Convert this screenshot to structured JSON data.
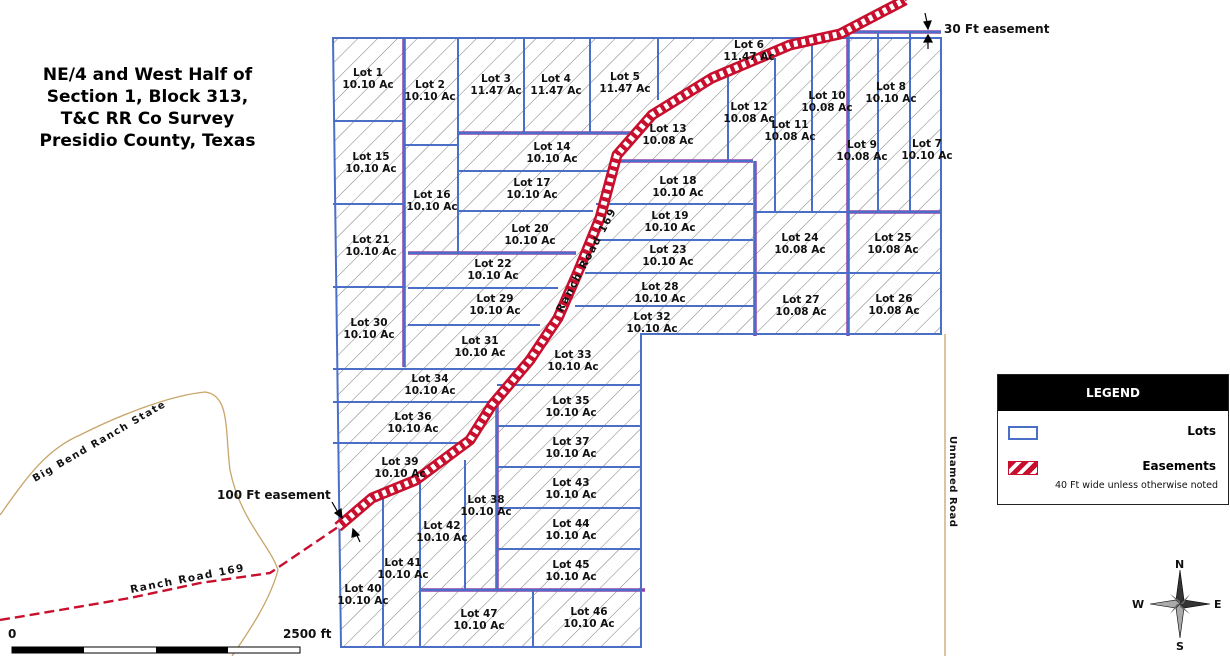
{
  "title_lines": [
    "NE/4 and West Half of",
    "Section 1, Block 313,",
    "T&C RR Co Survey",
    "Presidio County, Texas"
  ],
  "lots": [
    {
      "name": "Lot 1",
      "area": "10.10 Ac"
    },
    {
      "name": "Lot 2",
      "area": "10.10 Ac"
    },
    {
      "name": "Lot 3",
      "area": "11.47 Ac"
    },
    {
      "name": "Lot 4",
      "area": "11.47 Ac"
    },
    {
      "name": "Lot 5",
      "area": "11.47 Ac"
    },
    {
      "name": "Lot 6",
      "area": "11.47 Ac"
    },
    {
      "name": "Lot 7",
      "area": "10.10 Ac"
    },
    {
      "name": "Lot 8",
      "area": "10.10 Ac"
    },
    {
      "name": "Lot 9",
      "area": "10.08 Ac"
    },
    {
      "name": "Lot 10",
      "area": "10.08 Ac"
    },
    {
      "name": "Lot 11",
      "area": "10.08 Ac"
    },
    {
      "name": "Lot 12",
      "area": "10.08 Ac"
    },
    {
      "name": "Lot 13",
      "area": "10.08 Ac"
    },
    {
      "name": "Lot 14",
      "area": "10.10 Ac"
    },
    {
      "name": "Lot 15",
      "area": "10.10 Ac"
    },
    {
      "name": "Lot 16",
      "area": "10.10 Ac"
    },
    {
      "name": "Lot 17",
      "area": "10.10 Ac"
    },
    {
      "name": "Lot 18",
      "area": "10.10 Ac"
    },
    {
      "name": "Lot 19",
      "area": "10.10 Ac"
    },
    {
      "name": "Lot 20",
      "area": "10.10 Ac"
    },
    {
      "name": "Lot 21",
      "area": "10.10 Ac"
    },
    {
      "name": "Lot 22",
      "area": "10.10 Ac"
    },
    {
      "name": "Lot 23",
      "area": "10.10 Ac"
    },
    {
      "name": "Lot 24",
      "area": "10.08 Ac"
    },
    {
      "name": "Lot 25",
      "area": "10.08 Ac"
    },
    {
      "name": "Lot 26",
      "area": "10.08 Ac"
    },
    {
      "name": "Lot 27",
      "area": "10.08 Ac"
    },
    {
      "name": "Lot 28",
      "area": "10.10 Ac"
    },
    {
      "name": "Lot 29",
      "area": "10.10 Ac"
    },
    {
      "name": "Lot 30",
      "area": "10.10 Ac"
    },
    {
      "name": "Lot 31",
      "area": "10.10 Ac"
    },
    {
      "name": "Lot 32",
      "area": "10.10 Ac"
    },
    {
      "name": "Lot 33",
      "area": "10.10 Ac"
    },
    {
      "name": "Lot 34",
      "area": "10.10 Ac"
    },
    {
      "name": "Lot 35",
      "area": "10.10 Ac"
    },
    {
      "name": "Lot 36",
      "area": "10.10 Ac"
    },
    {
      "name": "Lot 37",
      "area": "10.10 Ac"
    },
    {
      "name": "Lot 38",
      "area": "10.10 Ac"
    },
    {
      "name": "Lot 39",
      "area": "10.10 Ac"
    },
    {
      "name": "Lot 40",
      "area": "10.10 Ac"
    },
    {
      "name": "Lot 41",
      "area": "10.10 Ac"
    },
    {
      "name": "Lot 42",
      "area": "10.10 Ac"
    },
    {
      "name": "Lot 43",
      "area": "10.10 Ac"
    },
    {
      "name": "Lot 44",
      "area": "10.10 Ac"
    },
    {
      "name": "Lot 45",
      "area": "10.10 Ac"
    },
    {
      "name": "Lot 46",
      "area": "10.10 Ac"
    },
    {
      "name": "Lot 47",
      "area": "10.10 Ac"
    }
  ],
  "labels": {
    "easement_30": "30 Ft easement",
    "easement_100": "100 Ft easement",
    "ranch_road_diag": "Ranch Road 169",
    "ranch_road_sw": "Ranch Road 169",
    "big_bend": "Big Bend Ranch State",
    "unnamed_road": "Unnamed Road"
  },
  "legend": {
    "title": "LEGEND",
    "items": [
      {
        "label": "Lots",
        "swatch": "lots"
      },
      {
        "label": "Easements",
        "swatch": "easements"
      }
    ],
    "note": "40 Ft wide unless otherwise noted"
  },
  "compass": {
    "n": "N",
    "s": "S",
    "e": "E",
    "w": "W"
  },
  "scale_bar": {
    "start": "0",
    "end": "2500 ft"
  },
  "colors": {
    "lot_border": "#4a6fc7",
    "hatch": "#5a5a5a",
    "easement": "#c8102e",
    "easement_border": "#8e44ad",
    "road_brown": "#c8a56a"
  }
}
